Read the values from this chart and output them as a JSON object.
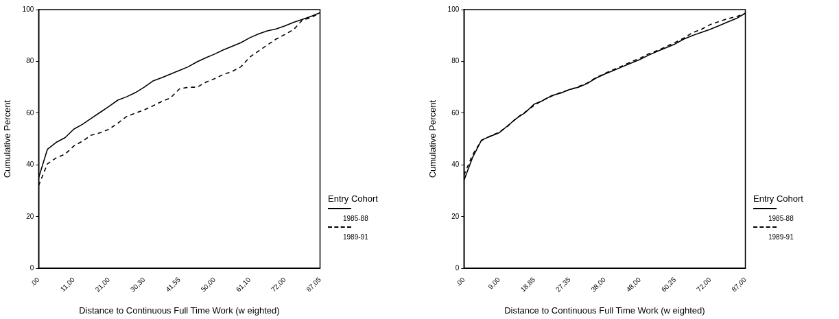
{
  "chart_data": [
    {
      "type": "line",
      "xlabel": "Distance to Continuous Full Time Work (w eighted)",
      "ylabel": "Cumulative Percent",
      "legend_title": "Entry Cohort",
      "legend": "right",
      "grid": false,
      "marker": "none",
      "ylim": [
        0,
        100
      ],
      "yticks": [
        0,
        20,
        40,
        60,
        80,
        100
      ],
      "categories": [
        ".00",
        null,
        null,
        null,
        "11,00",
        null,
        null,
        null,
        "21,00",
        null,
        null,
        null,
        "30,30",
        null,
        null,
        null,
        "41,55",
        null,
        null,
        null,
        "50,00",
        null,
        null,
        null,
        "61,10",
        null,
        null,
        null,
        "72,00",
        null,
        null,
        null,
        "87,05"
      ],
      "series": [
        {
          "name": "1985-88",
          "color": "#000000",
          "line_style": "solid",
          "values": [
            35,
            46,
            48.7,
            50.5,
            53.8,
            55.7,
            58,
            60.3,
            62.6,
            65,
            66.3,
            67.9,
            70,
            72.4,
            73.7,
            75.1,
            76.5,
            77.9,
            79.8,
            81.4,
            82.8,
            84.4,
            85.8,
            87.2,
            89.1,
            90.6,
            91.8,
            92.5,
            93.7,
            95.1,
            96.2,
            97.4,
            98.8
          ]
        },
        {
          "name": "1989-91",
          "color": "#000000",
          "line_style": "dashed",
          "values": [
            32,
            40.4,
            42.7,
            44.1,
            47.3,
            49.2,
            51.5,
            52.4,
            53.8,
            56.1,
            58.7,
            60,
            61.2,
            62.8,
            64.5,
            65.9,
            69.3,
            70,
            70,
            71.9,
            73.3,
            74.9,
            76.1,
            77.9,
            81.6,
            84,
            86.3,
            88.6,
            90.4,
            92.3,
            96,
            96.9,
            98.8
          ]
        }
      ]
    },
    {
      "type": "line",
      "xlabel": "Distance to Continuous Full Time Work (w eighted)",
      "ylabel": "Cumulative Percent",
      "legend_title": "Entry Cohort",
      "legend": "right",
      "grid": false,
      "marker": "none",
      "ylim": [
        0,
        100
      ],
      "yticks": [
        0,
        20,
        40,
        60,
        80,
        100
      ],
      "categories": [
        ".00",
        null,
        null,
        null,
        "9,00",
        null,
        null,
        null,
        "18,85",
        null,
        null,
        null,
        "27,35",
        null,
        null,
        null,
        "38,00",
        null,
        null,
        null,
        "48,00",
        null,
        null,
        null,
        "60,25",
        null,
        null,
        null,
        "72,00",
        null,
        null,
        null,
        "87,00"
      ],
      "series": [
        {
          "name": "1985-88",
          "color": "#000000",
          "line_style": "solid",
          "values": [
            34,
            43,
            49.6,
            51,
            52.4,
            55.2,
            58,
            60.3,
            63.5,
            64.9,
            66.8,
            67.7,
            69.1,
            70,
            71.4,
            73.5,
            75.1,
            76.5,
            77.9,
            79.3,
            80.7,
            82.4,
            83.9,
            85.3,
            86.7,
            88.6,
            90,
            91.2,
            92.4,
            93.8,
            95.2,
            96.6,
            98.6
          ]
        },
        {
          "name": "1989-91",
          "color": "#000000",
          "line_style": "dashed",
          "values": [
            36,
            44,
            49.4,
            51.2,
            52.6,
            55,
            58.2,
            60.5,
            63,
            65.1,
            66.6,
            68,
            69,
            70.2,
            71.6,
            73.7,
            75.3,
            76.8,
            78.2,
            79.8,
            81.2,
            82.9,
            84.2,
            85.7,
            87.3,
            89,
            91.1,
            92.4,
            94.2,
            95.4,
            96.5,
            97.3,
            98.6
          ]
        }
      ]
    }
  ]
}
